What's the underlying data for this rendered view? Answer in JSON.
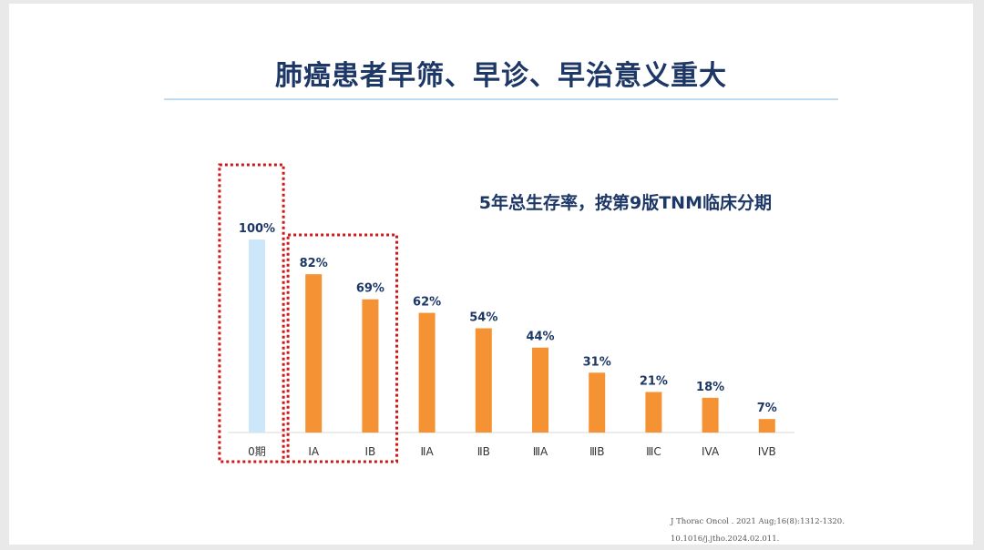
{
  "slide": {
    "title": "肺癌患者早筛、早诊、早治意义重大",
    "references": [
      "J Thorac Oncol . 2021 Aug;16(8):1312-1320.",
      "10.1016/j.jtho.2024.02.011."
    ]
  },
  "chart_data": {
    "type": "bar",
    "title": "5年总生存率，按第9版TNM临床分期",
    "categories": [
      "0期",
      "IA",
      "IB",
      "ⅡA",
      "ⅡB",
      "ⅢA",
      "ⅢB",
      "ⅢC",
      "IVA",
      "IVB"
    ],
    "values": [
      100,
      82,
      69,
      62,
      54,
      44,
      31,
      21,
      18,
      7
    ],
    "value_labels": [
      "100%",
      "82%",
      "69%",
      "62%",
      "54%",
      "44%",
      "31%",
      "21%",
      "18%",
      "7%"
    ],
    "unit": "%",
    "ylim": [
      0,
      100
    ],
    "grid": false,
    "bar_colors": [
      "#cce7fa",
      "#f59233",
      "#f59233",
      "#f59233",
      "#f59233",
      "#f59233",
      "#f59233",
      "#f59233",
      "#f59233",
      "#f59233"
    ],
    "highlight_color": "#cc1a1a",
    "highlight_groups": [
      [
        "0期"
      ],
      [
        "IA",
        "IB"
      ]
    ],
    "title_color": "#1d3766",
    "label_color": "#1d3766"
  }
}
